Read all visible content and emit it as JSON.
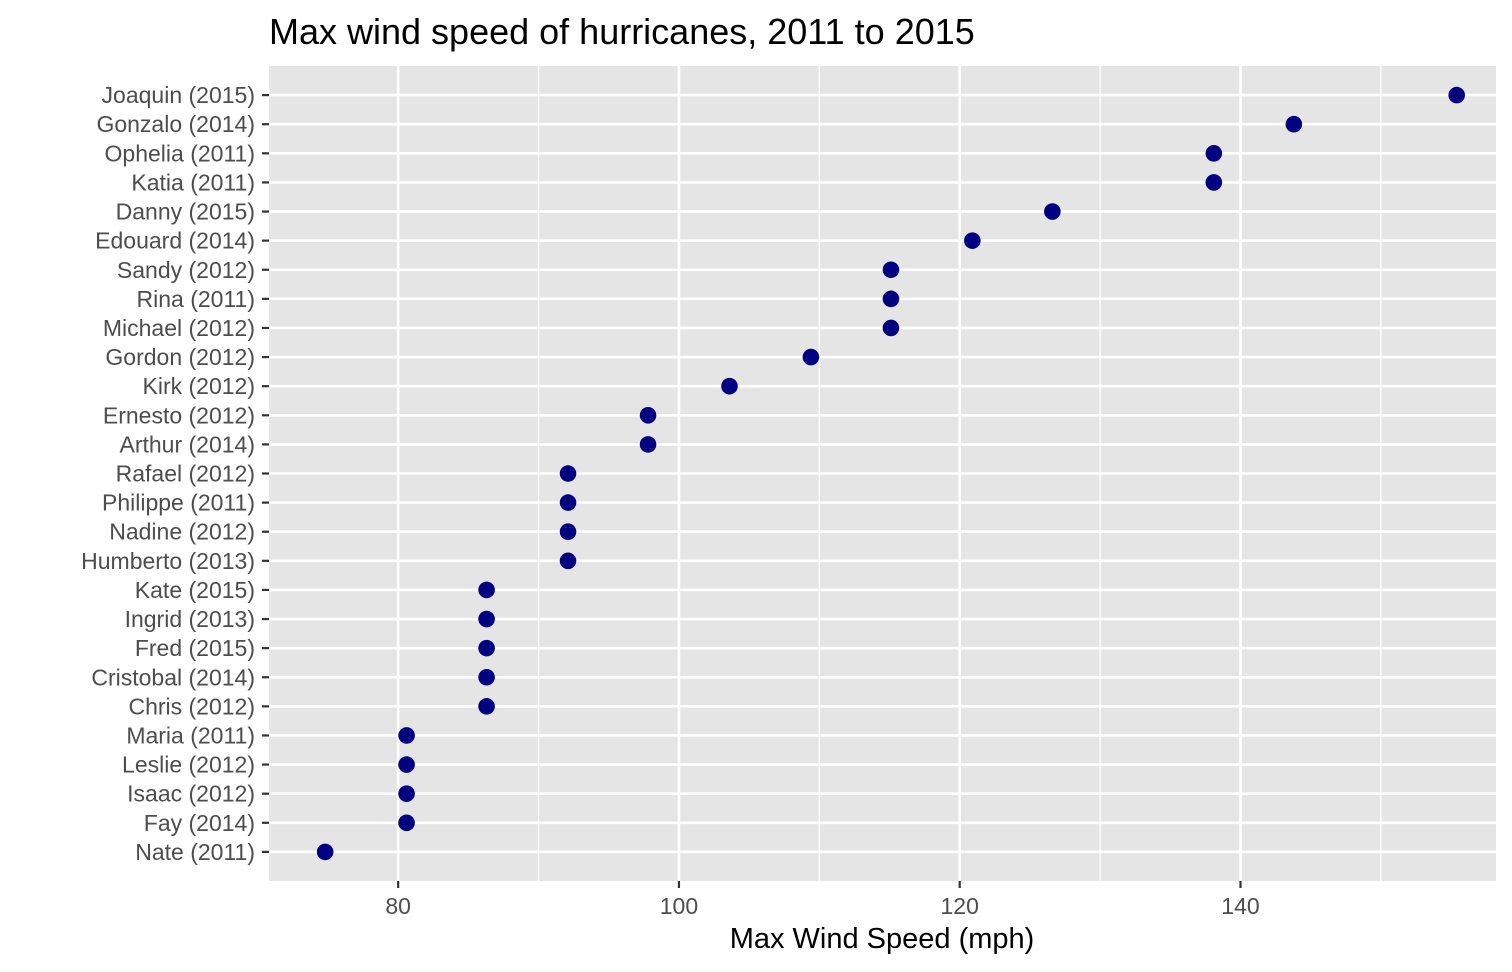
{
  "chart_data": {
    "type": "scatter",
    "title": "Max wind speed of hurricanes, 2011 to 2015",
    "xlabel": "Max Wind Speed (mph)",
    "ylabel": "",
    "xlim": [
      70.8,
      158.2
    ],
    "x_ticks": [
      80,
      100,
      120,
      140
    ],
    "x_minor_ticks": [
      90,
      110,
      130,
      150
    ],
    "grid": true,
    "legend": "none",
    "point_color": "#000080",
    "panel_color": "#e5e5e5",
    "categories": [
      "Nate (2011)",
      "Fay (2014)",
      "Isaac (2012)",
      "Leslie (2012)",
      "Maria (2011)",
      "Chris (2012)",
      "Cristobal (2014)",
      "Fred (2015)",
      "Ingrid (2013)",
      "Kate (2015)",
      "Humberto (2013)",
      "Nadine (2012)",
      "Philippe (2011)",
      "Rafael (2012)",
      "Arthur (2014)",
      "Ernesto (2012)",
      "Kirk (2012)",
      "Gordon (2012)",
      "Michael (2012)",
      "Rina (2011)",
      "Sandy (2012)",
      "Edouard (2014)",
      "Danny (2015)",
      "Katia (2011)",
      "Ophelia (2011)",
      "Gonzalo (2014)",
      "Joaquin (2015)"
    ],
    "values": [
      74.8,
      80.6,
      80.6,
      80.6,
      80.6,
      86.3,
      86.3,
      86.3,
      86.3,
      86.3,
      92.1,
      92.1,
      92.1,
      92.1,
      97.8,
      97.8,
      103.6,
      109.4,
      115.1,
      115.1,
      115.1,
      120.9,
      126.6,
      138.1,
      138.1,
      143.8,
      155.4
    ]
  }
}
